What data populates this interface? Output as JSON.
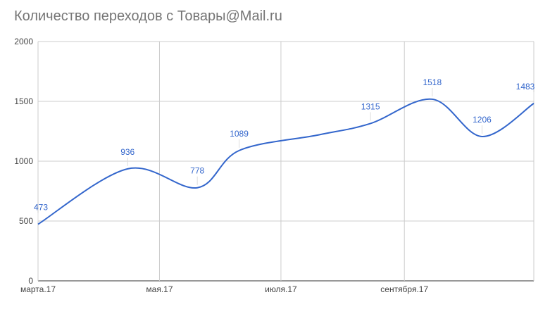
{
  "chart_data": {
    "type": "line",
    "title": "Количество переходов с Товары@Mail.ru",
    "x": [
      "2017-03-01",
      "2017-04-15",
      "2017-05-20",
      "2017-06-10",
      "2017-07-20",
      "2017-08-15",
      "2017-09-15",
      "2017-10-10",
      "2017-11-05"
    ],
    "series": [
      {
        "values": [
          473,
          936,
          778,
          1089,
          1220,
          1315,
          1518,
          1206,
          1483
        ],
        "labels": [
          "473",
          "936",
          "778",
          "1089",
          "",
          "1315",
          "1518",
          "1206",
          "1483"
        ]
      }
    ],
    "xticks": [
      {
        "date": "2017-03-01",
        "label": "марта.17"
      },
      {
        "date": "2017-05-01",
        "label": "мая.17"
      },
      {
        "date": "2017-07-01",
        "label": "июля.17"
      },
      {
        "date": "2017-09-01",
        "label": "сентября.17"
      }
    ],
    "yticks": [
      "0",
      "500",
      "1000",
      "1500",
      "2000"
    ],
    "ylim": [
      0,
      2000
    ],
    "xlim": [
      "2017-03-01",
      "2017-11-05"
    ],
    "grid": true,
    "legend": "none",
    "line_color": "#3366cc",
    "xlabel": "",
    "ylabel": ""
  }
}
